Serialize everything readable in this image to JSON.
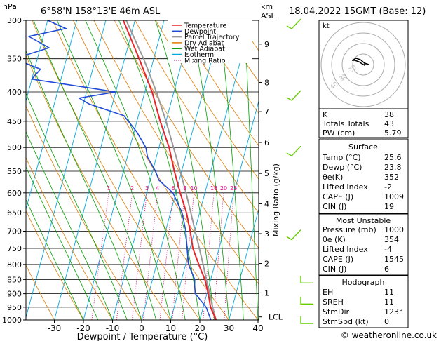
{
  "header": {
    "hpa_label": "hPa",
    "location": "6°58'N 158°13'E 46m ASL",
    "km_label": "km",
    "asl_label": "ASL",
    "datetime": "18.04.2022 15GMT (Base: 12)"
  },
  "chart_data": {
    "type": "line",
    "title": "",
    "xlabel": "Dewpoint / Temperature (°C)",
    "ylabel": "",
    "right_axis_label": "Mixing Ratio (g/kg)",
    "xlim": [
      -35,
      40
    ],
    "ylim": [
      1000,
      300
    ],
    "y_scale": "log",
    "x_ticks": [
      -30,
      -20,
      -10,
      0,
      10,
      20,
      30,
      40
    ],
    "pressure_levels": [
      300,
      350,
      400,
      450,
      500,
      550,
      600,
      650,
      700,
      750,
      800,
      850,
      900,
      950,
      1000
    ],
    "km_ticks": [
      {
        "label": "9",
        "p": 330
      },
      {
        "label": "8",
        "p": 385
      },
      {
        "label": "7",
        "p": 433
      },
      {
        "label": "6",
        "p": 490
      },
      {
        "label": "5",
        "p": 555
      },
      {
        "label": "4",
        "p": 627
      },
      {
        "label": "3",
        "p": 707
      },
      {
        "label": "2",
        "p": 797
      },
      {
        "label": "1",
        "p": 897
      },
      {
        "label": "LCL",
        "p": 988
      }
    ],
    "mixing_ratio_labels": [
      "1",
      "2",
      "3",
      "4",
      "6",
      "8",
      "10",
      "16",
      "20",
      "25"
    ],
    "legend": [
      {
        "name": "Temperature",
        "color": "#e8232a"
      },
      {
        "name": "Dewpoint",
        "color": "#1f4ad8"
      },
      {
        "name": "Parcel Trajectory",
        "color": "#999999"
      },
      {
        "name": "Dry Adiabat",
        "color": "#e07b00"
      },
      {
        "name": "Wet Adiabat",
        "color": "#00a000"
      },
      {
        "name": "Isotherm",
        "color": "#00a8e0"
      },
      {
        "name": "Mixing Ratio",
        "color": "#e0007a"
      }
    ],
    "series": [
      {
        "name": "Temperature",
        "color": "#e8232a",
        "points": [
          {
            "p": 1000,
            "t": 25.6
          },
          {
            "p": 950,
            "t": 22.5
          },
          {
            "p": 900,
            "t": 20.5
          },
          {
            "p": 850,
            "t": 18.0
          },
          {
            "p": 800,
            "t": 14.5
          },
          {
            "p": 750,
            "t": 11.0
          },
          {
            "p": 700,
            "t": 8.5
          },
          {
            "p": 650,
            "t": 5.5
          },
          {
            "p": 600,
            "t": 1.5
          },
          {
            "p": 550,
            "t": -2.5
          },
          {
            "p": 500,
            "t": -6.5
          },
          {
            "p": 450,
            "t": -12.0
          },
          {
            "p": 400,
            "t": -17.5
          },
          {
            "p": 350,
            "t": -25.0
          },
          {
            "p": 300,
            "t": -34.0
          }
        ]
      },
      {
        "name": "Dewpoint",
        "color": "#1f4ad8",
        "points": [
          {
            "p": 1000,
            "t": 23.8
          },
          {
            "p": 950,
            "t": 21.0
          },
          {
            "p": 900,
            "t": 16.0
          },
          {
            "p": 870,
            "t": 15.0
          },
          {
            "p": 850,
            "t": 14.5
          },
          {
            "p": 800,
            "t": 11.0
          },
          {
            "p": 750,
            "t": 9.0
          },
          {
            "p": 700,
            "t": 7.0
          },
          {
            "p": 650,
            "t": 4.0
          },
          {
            "p": 600,
            "t": -1.0
          },
          {
            "p": 570,
            "t": -7.0
          },
          {
            "p": 550,
            "t": -9.0
          },
          {
            "p": 520,
            "t": -13.0
          },
          {
            "p": 500,
            "t": -14.5
          },
          {
            "p": 470,
            "t": -19.0
          },
          {
            "p": 440,
            "t": -25.0
          },
          {
            "p": 420,
            "t": -38.0
          },
          {
            "p": 410,
            "t": -42.0
          },
          {
            "p": 400,
            "t": -30.0
          },
          {
            "p": 380,
            "t": -60.0
          },
          {
            "p": 365,
            "t": -58.0
          },
          {
            "p": 350,
            "t": -68.0
          },
          {
            "p": 335,
            "t": -57.0
          },
          {
            "p": 320,
            "t": -65.0
          },
          {
            "p": 310,
            "t": -53.0
          },
          {
            "p": 300,
            "t": -60.0
          }
        ]
      },
      {
        "name": "Parcel Trajectory",
        "color": "#999999",
        "points": [
          {
            "p": 1000,
            "t": 25.6
          },
          {
            "p": 950,
            "t": 23.2
          },
          {
            "p": 900,
            "t": 21.0
          },
          {
            "p": 850,
            "t": 18.5
          },
          {
            "p": 800,
            "t": 16.0
          },
          {
            "p": 750,
            "t": 13.2
          },
          {
            "p": 700,
            "t": 10.2
          },
          {
            "p": 650,
            "t": 7.0
          },
          {
            "p": 600,
            "t": 3.5
          },
          {
            "p": 550,
            "t": -0.5
          },
          {
            "p": 500,
            "t": -5.0
          },
          {
            "p": 450,
            "t": -10.0
          },
          {
            "p": 400,
            "t": -16.0
          },
          {
            "p": 350,
            "t": -23.5
          },
          {
            "p": 300,
            "t": -33.0
          }
        ]
      }
    ]
  },
  "hodograph": {
    "label": "kt",
    "ring_labels": [
      "40",
      "30",
      "20"
    ]
  },
  "indices": {
    "rows": [
      {
        "label": "K",
        "value": "38"
      },
      {
        "label": "Totals Totals",
        "value": "43"
      },
      {
        "label": "PW (cm)",
        "value": "5.79"
      }
    ]
  },
  "surface": {
    "title": "Surface",
    "rows": [
      {
        "label": "Temp (°C)",
        "value": "25.6"
      },
      {
        "label": "Dewp (°C)",
        "value": "23.8"
      },
      {
        "label": "θe(K)",
        "value": "352"
      },
      {
        "label": "Lifted Index",
        "value": "-2"
      },
      {
        "label": "CAPE (J)",
        "value": "1009"
      },
      {
        "label": "CIN (J)",
        "value": "19"
      }
    ]
  },
  "most_unstable": {
    "title": "Most Unstable",
    "rows": [
      {
        "label": "Pressure (mb)",
        "value": "1000"
      },
      {
        "label": "θe (K)",
        "value": "354"
      },
      {
        "label": "Lifted Index",
        "value": "-4"
      },
      {
        "label": "CAPE (J)",
        "value": "1545"
      },
      {
        "label": "CIN (J)",
        "value": "6"
      }
    ]
  },
  "hodograph_table": {
    "title": "Hodograph",
    "rows": [
      {
        "label": "EH",
        "value": "11"
      },
      {
        "label": "SREH",
        "value": "11"
      },
      {
        "label": "StmDir",
        "value": "123°"
      },
      {
        "label": "StmSpd (kt)",
        "value": "0"
      }
    ]
  },
  "footer": {
    "copyright": "© weatheronline.co.uk"
  },
  "colors": {
    "temperature": "#e8232a",
    "dewpoint": "#1f4ad8",
    "parcel": "#999999",
    "dry_adiabat": "#e07b00",
    "wet_adiabat": "#00a000",
    "isotherm": "#00a8e0",
    "mixing_ratio": "#e0007a",
    "wind_barb": "#66cc00"
  }
}
